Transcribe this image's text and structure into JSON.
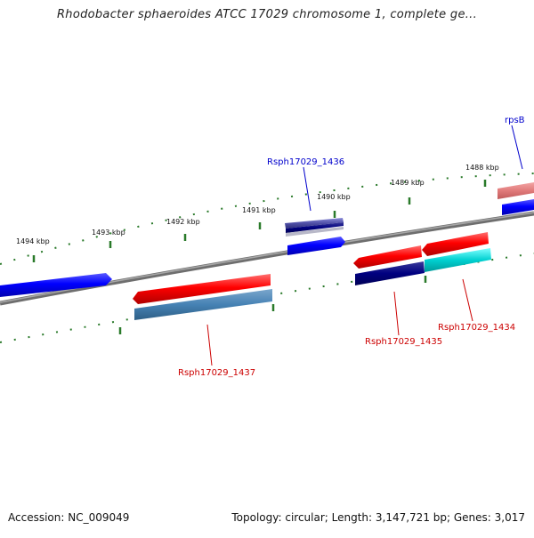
{
  "title": "Rhodobacter sphaeroides ATCC 17029 chromosome 1, complete ge...",
  "footer": {
    "accession": "Accession: NC_009049",
    "stats": "Topology: circular; Length: 3,147,721 bp; Genes: 3,017"
  },
  "ticks": [
    "1494 kbp",
    "1493 kbp",
    "1492 kbp",
    "1491 kbp",
    "1490 kbp",
    "1489 kbp",
    "1488 kbp"
  ],
  "genes": [
    {
      "label": "rpsB",
      "color": "#0000cc"
    },
    {
      "label": "Rsph17029_1436",
      "color": "#0000cc"
    },
    {
      "label": "Rsph17029_1437",
      "color": "#cc0000"
    },
    {
      "label": "Rsph17029_1435",
      "color": "#cc0000"
    },
    {
      "label": "Rsph17029_1434",
      "color": "#cc0000"
    }
  ],
  "colors": {
    "forward": "#0000ff",
    "reverse": "#ff0000",
    "backbone": "#808080",
    "ticks": "#2a7a2a",
    "steelblue": "#4682b4",
    "navy": "#000080",
    "cyan": "#00cccc"
  }
}
